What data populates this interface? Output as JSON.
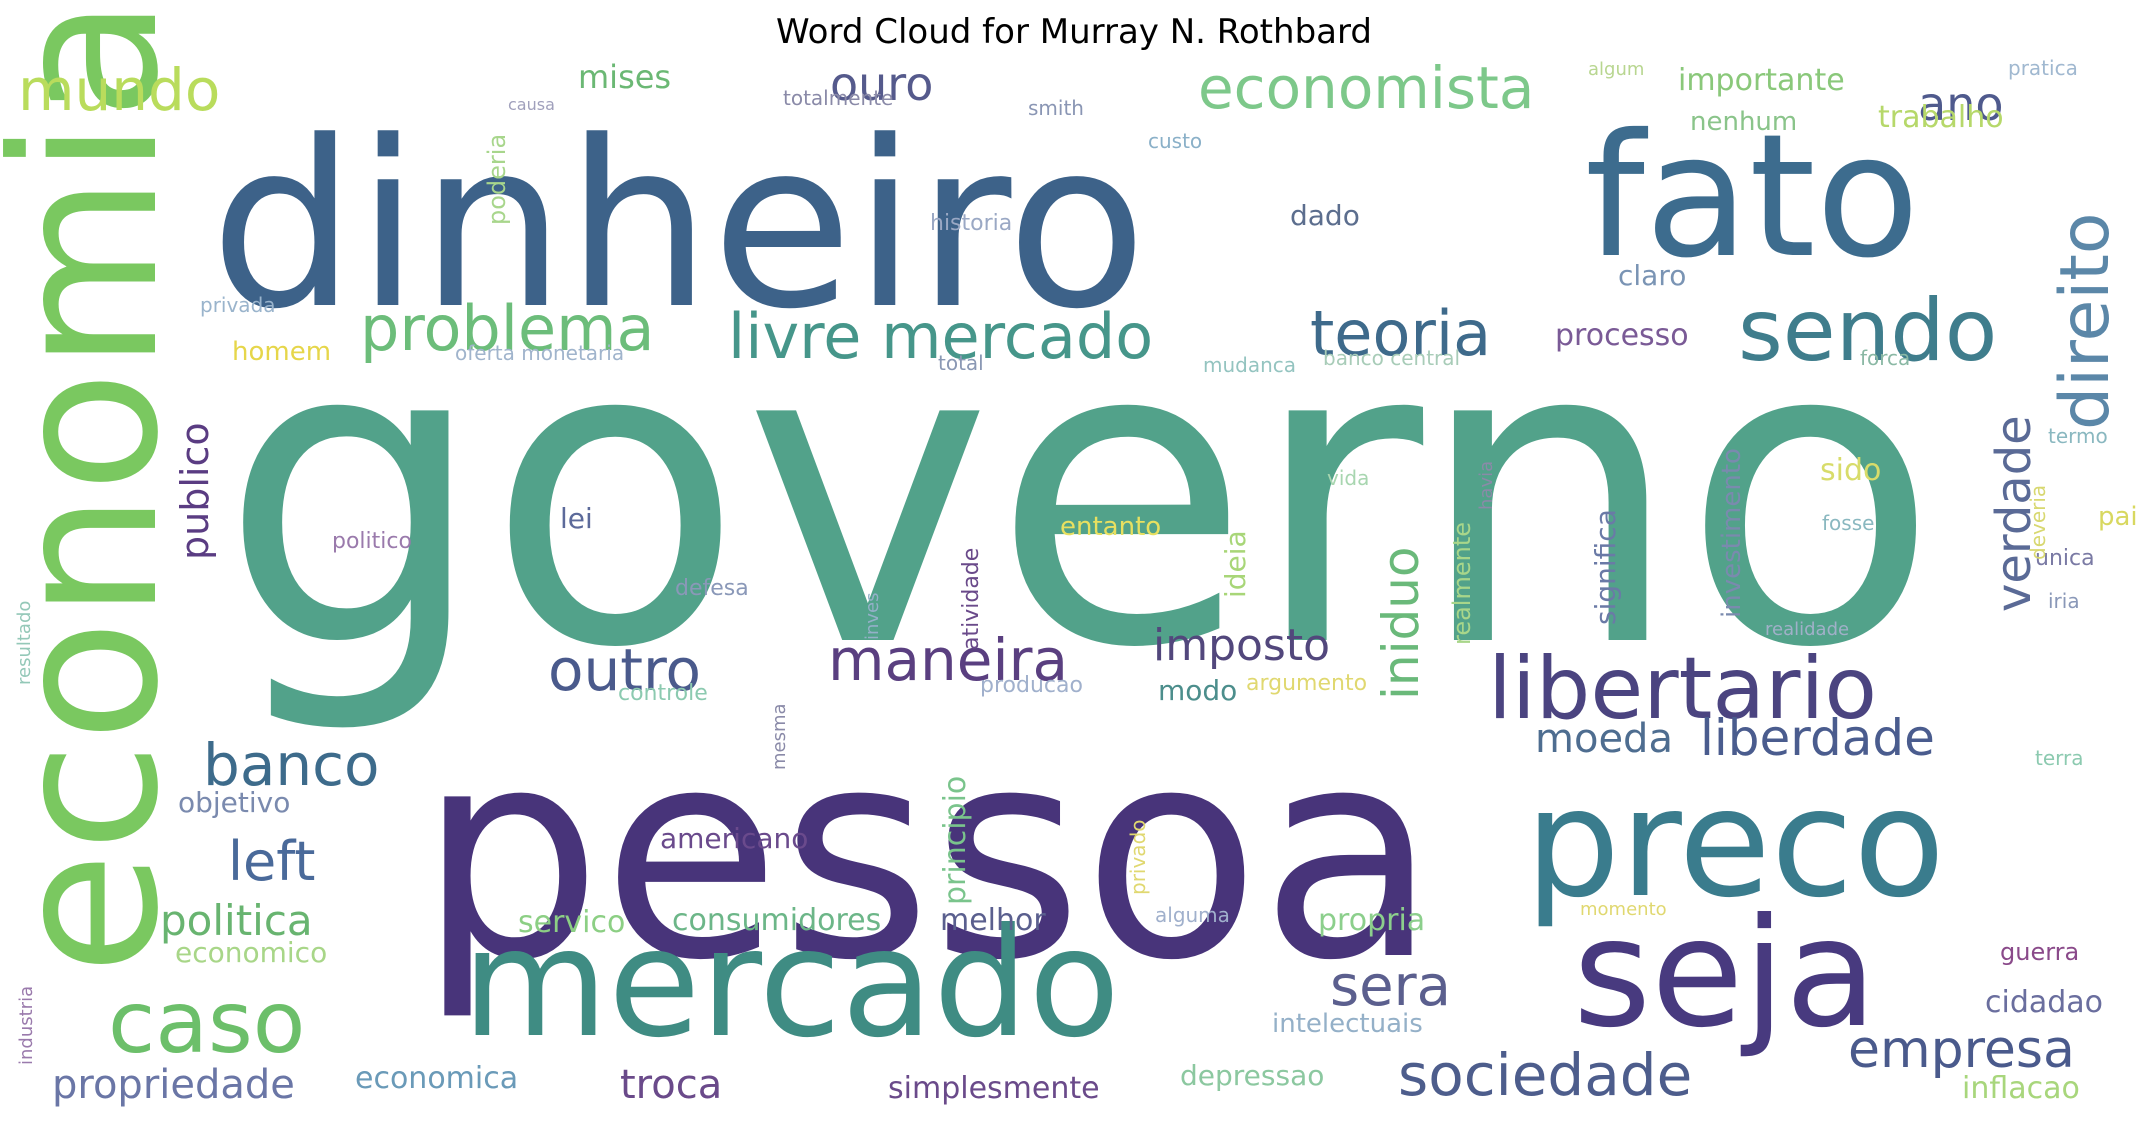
{
  "title": "Word Cloud for Murray N. Rothbard",
  "words": [
    {
      "text": "governo",
      "color": "#52a28a"
    },
    {
      "text": "dinheiro",
      "color": "#3d6289"
    },
    {
      "text": "pessoa",
      "color": "#48347a"
    },
    {
      "text": "economia",
      "color": "#7ac860"
    },
    {
      "text": "fato",
      "color": "#3d6c8e"
    },
    {
      "text": "preco",
      "color": "#3a7c8d"
    },
    {
      "text": "mercado",
      "color": "#3f8c83"
    },
    {
      "text": "seja",
      "color": "#483a7f"
    },
    {
      "text": "libertario",
      "color": "#4b4480"
    },
    {
      "text": "sendo",
      "color": "#3f7d8c"
    },
    {
      "text": "sociedade",
      "color": "#4d5d8c"
    },
    {
      "text": "caso",
      "color": "#6cbf6a"
    },
    {
      "text": "problema",
      "color": "#6cbd7a"
    },
    {
      "text": "livre mercado",
      "color": "#46968a"
    },
    {
      "text": "teoria",
      "color": "#3e6a8b"
    },
    {
      "text": "economista",
      "color": "#7dc88a"
    },
    {
      "text": "mundo",
      "color": "#b9dc5c"
    },
    {
      "text": "direito",
      "color": "#5b87a8"
    },
    {
      "text": "maneira",
      "color": "#5a3f80"
    },
    {
      "text": "outro",
      "color": "#4a5a8c"
    },
    {
      "text": "banco",
      "color": "#3d6b8b"
    },
    {
      "text": "left",
      "color": "#4a6a9a"
    },
    {
      "text": "politica",
      "color": "#68b470"
    },
    {
      "text": "empresa",
      "color": "#4a5a8c"
    },
    {
      "text": "liberdade",
      "color": "#4a5c8e"
    },
    {
      "text": "sera",
      "color": "#5b5f8e"
    },
    {
      "text": "iniduo",
      "color": "#6ab97a"
    },
    {
      "text": "verdade",
      "color": "#5a6a96"
    },
    {
      "text": "imposto",
      "color": "#52477c"
    },
    {
      "text": "ouro",
      "color": "#555a8c"
    },
    {
      "text": "ano",
      "color": "#4f5a8d"
    },
    {
      "text": "publico",
      "color": "#5a3c82"
    },
    {
      "text": "propriedade",
      "color": "#6a76a6"
    },
    {
      "text": "moeda",
      "color": "#4e6d90"
    },
    {
      "text": "troca",
      "color": "#6a4a8a"
    },
    {
      "text": "processo",
      "color": "#7a5a96"
    },
    {
      "text": "mises",
      "color": "#6bb874"
    },
    {
      "text": "importante",
      "color": "#8ac87a"
    },
    {
      "text": "trabalho",
      "color": "#b6d86a"
    },
    {
      "text": "nenhum",
      "color": "#8ac48a"
    },
    {
      "text": "claro",
      "color": "#7a94b4"
    },
    {
      "text": "dado",
      "color": "#5c6e8e"
    },
    {
      "text": "consumidores",
      "color": "#6cb688"
    },
    {
      "text": "servico",
      "color": "#8ccf84"
    },
    {
      "text": "melhor",
      "color": "#5a5f8e"
    },
    {
      "text": "propria",
      "color": "#8ccf8c"
    },
    {
      "text": "economico",
      "color": "#a8d688"
    },
    {
      "text": "economica",
      "color": "#6a9ab8"
    },
    {
      "text": "simplesmente",
      "color": "#6a4a8a"
    },
    {
      "text": "depressao",
      "color": "#8cc8a0"
    },
    {
      "text": "inflacao",
      "color": "#a8d67c"
    },
    {
      "text": "cidadao",
      "color": "#6a6e9e"
    },
    {
      "text": "guerra",
      "color": "#8a4a8a"
    },
    {
      "text": "intelectuais",
      "color": "#94b0c8"
    },
    {
      "text": "principio",
      "color": "#7ac48c"
    },
    {
      "text": "objetivo",
      "color": "#7a8aae"
    },
    {
      "text": "americano",
      "color": "#6a4a8c"
    },
    {
      "text": "homem",
      "color": "#e6d64a"
    },
    {
      "text": "entanto",
      "color": "#e8e060"
    },
    {
      "text": "ideia",
      "color": "#a8d678"
    },
    {
      "text": "sido",
      "color": "#d8dc6a"
    },
    {
      "text": "pai",
      "color": "#d8d860"
    },
    {
      "text": "modo",
      "color": "#4c8e8c"
    },
    {
      "text": "lei",
      "color": "#5c6a9a"
    },
    {
      "text": "atividade",
      "color": "#6a4a8a"
    },
    {
      "text": "significa",
      "color": "#6a7aa6"
    },
    {
      "text": "investimento",
      "color": "#7a8aae"
    },
    {
      "text": "realmente",
      "color": "#a8d68a"
    },
    {
      "text": "poderia",
      "color": "#a8d68c"
    },
    {
      "text": "historia",
      "color": "#9aa8c4"
    },
    {
      "text": "totalmente",
      "color": "#8a8aa8"
    },
    {
      "text": "smith",
      "color": "#8a96b4"
    },
    {
      "text": "custo",
      "color": "#8ab0c8"
    },
    {
      "text": "algum",
      "color": "#b8d690"
    },
    {
      "text": "pratica",
      "color": "#a0b8d0"
    },
    {
      "text": "privada",
      "color": "#9ab4cc"
    },
    {
      "text": "oferta monetaria",
      "color": "#a0b4cc"
    },
    {
      "text": "total",
      "color": "#8a98b4"
    },
    {
      "text": "mudanca",
      "color": "#94c4c0"
    },
    {
      "text": "banco central",
      "color": "#a8ccb8"
    },
    {
      "text": "forca",
      "color": "#8ab8a4"
    },
    {
      "text": "termo",
      "color": "#8ab8c0"
    },
    {
      "text": "politico",
      "color": "#9a7aac"
    },
    {
      "text": "defesa",
      "color": "#8a98b8"
    },
    {
      "text": "controle",
      "color": "#8ccab0"
    },
    {
      "text": "producao",
      "color": "#a0b0cc"
    },
    {
      "text": "argumento",
      "color": "#e0d870"
    },
    {
      "text": "resultado",
      "color": "#94c8b8"
    },
    {
      "text": "industria",
      "color": "#9a7aac"
    },
    {
      "text": "vida",
      "color": "#a8d6b0"
    },
    {
      "text": "havia",
      "color": "#8a8aa8"
    },
    {
      "text": "fosse",
      "color": "#8ab8c0"
    },
    {
      "text": "unica",
      "color": "#7a7aa4"
    },
    {
      "text": "iria",
      "color": "#8a98b8"
    },
    {
      "text": "deveria",
      "color": "#d8d870"
    },
    {
      "text": "realidade",
      "color": "#a0b0c8"
    },
    {
      "text": "terra",
      "color": "#8ccab0"
    },
    {
      "text": "alguma",
      "color": "#a0b0cc"
    },
    {
      "text": "privado",
      "color": "#e0d870"
    },
    {
      "text": "momento",
      "color": "#e0d870"
    },
    {
      "text": "mesma",
      "color": "#8a8aa8"
    },
    {
      "text": "inves",
      "color": "#94b0c8"
    },
    {
      "text": "causa",
      "color": "#a0a0bc"
    }
  ]
}
